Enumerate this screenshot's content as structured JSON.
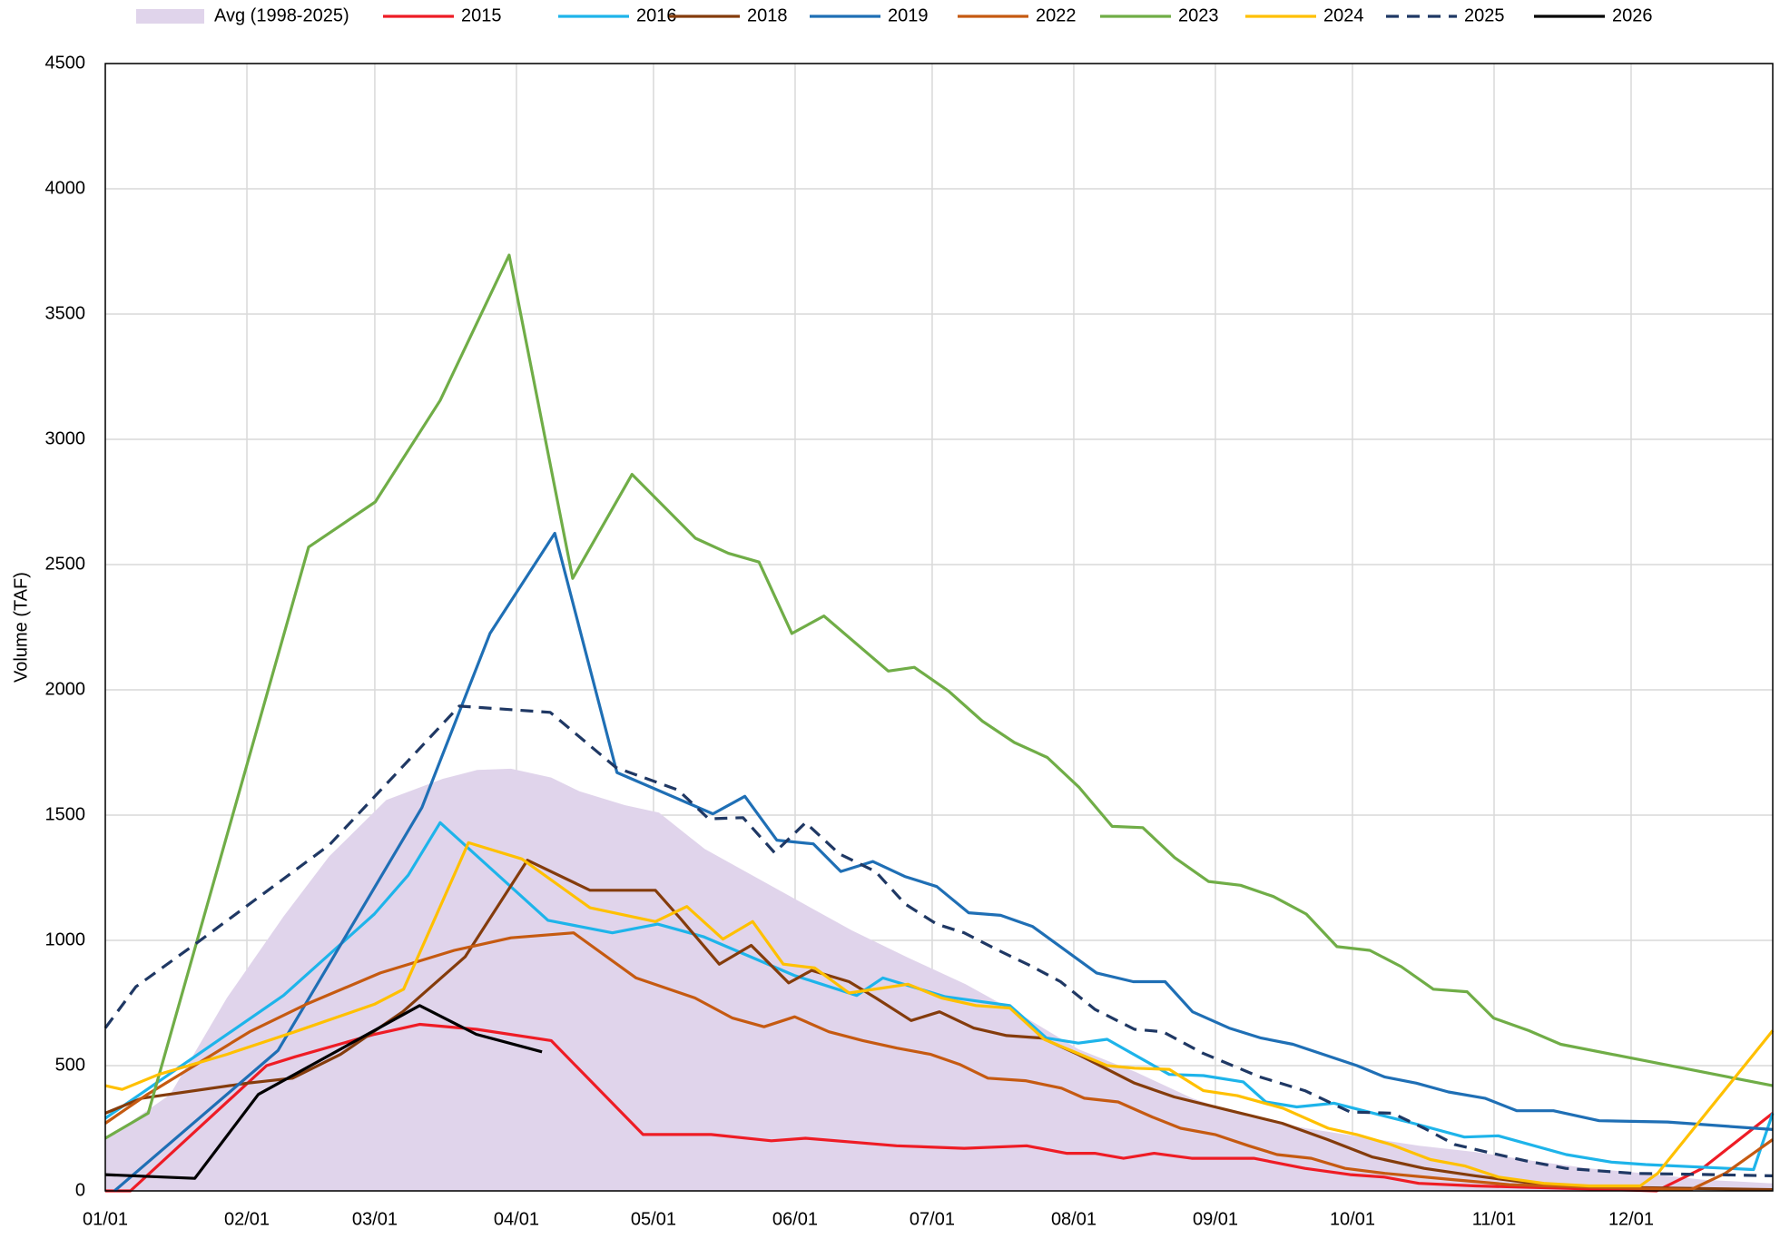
{
  "chart_data": {
    "type": "line",
    "y_label": "Volume (TAF)",
    "ylim": [
      0,
      4500
    ],
    "yticks": [
      0,
      500,
      1000,
      1500,
      2000,
      2500,
      3000,
      3500,
      4000,
      4500
    ],
    "xlim": [
      0,
      365
    ],
    "xticks": [
      {
        "value": 0,
        "label": "01/01"
      },
      {
        "value": 31,
        "label": "02/01"
      },
      {
        "value": 59,
        "label": "03/01"
      },
      {
        "value": 90,
        "label": "04/01"
      },
      {
        "value": 120,
        "label": "05/01"
      },
      {
        "value": 151,
        "label": "06/01"
      },
      {
        "value": 181,
        "label": "07/01"
      },
      {
        "value": 212,
        "label": "08/01"
      },
      {
        "value": 243,
        "label": "09/01"
      },
      {
        "value": 273,
        "label": "10/01"
      },
      {
        "value": 304,
        "label": "11/01"
      },
      {
        "value": 334,
        "label": "12/01"
      }
    ],
    "grid": true,
    "legend": "top",
    "series": [
      {
        "name": "Avg (1998-2025)",
        "type": "area",
        "color": "#e0d4eb",
        "x": [
          0,
          14.2,
          26.6,
          39,
          49,
          61.5,
          73.9,
          81.4,
          88.8,
          97.6,
          103.8,
          113.7,
          121.2,
          131.2,
          141.1,
          151,
          163.4,
          175.8,
          188.3,
          200.7,
          213.1,
          225.5,
          237.9,
          250.3,
          262.8,
          275.2,
          287.6,
          300,
          312.4,
          324.8,
          337.2,
          349.6,
          365
        ],
        "values": [
          205,
          385,
          770,
          1095,
          1335,
          1560,
          1645,
          1680,
          1685,
          1650,
          1595,
          1540,
          1510,
          1365,
          1265,
          1165,
          1040,
          930,
          825,
          700,
          565,
          475,
          370,
          295,
          250,
          215,
          180,
          155,
          120,
          90,
          70,
          45,
          30
        ]
      },
      {
        "name": "2015",
        "color": "#ee1c25",
        "x": [
          0,
          5.5,
          35.3,
          41.5,
          58.9,
          68.8,
          81.3,
          97.6,
          117.7,
          132.6,
          145.8,
          153.3,
          173.2,
          188,
          201.7,
          210.4,
          216.6,
          222.9,
          229.6,
          237.8,
          251.4,
          262.6,
          272.5,
          280,
          287.5,
          299.9,
          319.8,
          339.6,
          349.6,
          365
        ],
        "values": [
          0,
          0,
          500,
          535,
          625,
          665,
          645,
          600,
          225,
          225,
          200,
          210,
          180,
          170,
          180,
          150,
          150,
          130,
          150,
          130,
          130,
          90,
          65,
          55,
          30,
          20,
          10,
          0,
          90,
          310
        ]
      },
      {
        "name": "2016",
        "color": "#1eb4ea",
        "x": [
          0,
          39,
          58.9,
          66.3,
          73.3,
          96.9,
          111,
          120.9,
          130.9,
          150.8,
          164.5,
          170.2,
          183.9,
          198,
          206,
          213,
          219.3,
          232.9,
          240.4,
          249.1,
          254,
          260.8,
          269,
          277.6,
          286.3,
          297.5,
          304.9,
          319.8,
          329.7,
          337.2,
          360.8,
          365
        ],
        "values": [
          290,
          780,
          1105,
          1260,
          1470,
          1080,
          1030,
          1065,
          1015,
          860,
          780,
          850,
          775,
          740,
          610,
          590,
          605,
          465,
          460,
          435,
          355,
          335,
          350,
          310,
          270,
          215,
          220,
          145,
          115,
          105,
          85,
          310
        ]
      },
      {
        "name": "2018",
        "color": "#843c0c",
        "x": [
          0,
          8,
          31.1,
          41,
          51.5,
          65.1,
          78.8,
          92.4,
          106.1,
          120.4,
          126,
          134.4,
          141.4,
          149.6,
          154.6,
          162.8,
          168.7,
          176.4,
          182.6,
          190.1,
          197.3,
          205,
          212.9,
          225.3,
          234,
          245.2,
          257.6,
          267.5,
          277.4,
          288.7,
          299.9,
          314.8,
          329.7,
          365
        ],
        "values": [
          310,
          370,
          430,
          450,
          545,
          715,
          935,
          1320,
          1200,
          1200,
          1085,
          905,
          980,
          830,
          880,
          835,
          770,
          680,
          715,
          650,
          620,
          610,
          545,
          430,
          375,
          325,
          270,
          205,
          135,
          90,
          60,
          25,
          15,
          5
        ]
      },
      {
        "name": "2019",
        "color": "#1f6fb5",
        "x": [
          2,
          37.8,
          69.3,
          84.2,
          98.4,
          112,
          133,
          140,
          147,
          155,
          161,
          168,
          175,
          182,
          189,
          196,
          203,
          217,
          225,
          232,
          238,
          246,
          253,
          260,
          274,
          280,
          287,
          294,
          302,
          309,
          317,
          327,
          342,
          365
        ],
        "values": [
          0,
          560,
          1530,
          2225,
          2625,
          1670,
          1505,
          1575,
          1400,
          1385,
          1275,
          1315,
          1255,
          1215,
          1110,
          1100,
          1055,
          870,
          835,
          835,
          715,
          650,
          610,
          585,
          500,
          455,
          430,
          395,
          370,
          320,
          320,
          280,
          275,
          245
        ]
      },
      {
        "name": "2022",
        "color": "#c55a11",
        "x": [
          0,
          9.2,
          31.6,
          44,
          60.2,
          76.4,
          88.8,
          102.5,
          116.2,
          129.1,
          137.3,
          144.2,
          150.9,
          158.4,
          165.8,
          173.3,
          180.7,
          187,
          193.2,
          201.4,
          209.3,
          214.3,
          221.7,
          229.2,
          235.4,
          242.9,
          250.3,
          256.5,
          264,
          271.4,
          280.1,
          295,
          307.3,
          324.7,
          347.1,
          354.6,
          365
        ],
        "values": [
          270,
          385,
          635,
          745,
          870,
          960,
          1010,
          1030,
          850,
          770,
          690,
          655,
          695,
          635,
          600,
          570,
          545,
          505,
          450,
          440,
          410,
          370,
          355,
          295,
          250,
          225,
          180,
          145,
          130,
          90,
          70,
          45,
          25,
          15,
          5,
          70,
          205
        ]
      },
      {
        "name": "2023",
        "color": "#70ad47",
        "x": [
          0,
          9.4,
          44.5,
          59.1,
          73.3,
          88.4,
          102.3,
          115.3,
          129.2,
          136.4,
          143.1,
          150.3,
          157.3,
          171.4,
          177.1,
          184.6,
          192,
          199,
          206.2,
          213.2,
          220.4,
          227.1,
          234.1,
          241.5,
          248.5,
          255.7,
          262.9,
          269.6,
          276.8,
          283.7,
          290.7,
          298.1,
          303.9,
          311.6,
          318.6,
          365
        ],
        "values": [
          210,
          310,
          2570,
          2750,
          3155,
          3735,
          2445,
          2860,
          2605,
          2545,
          2510,
          2225,
          2295,
          2075,
          2090,
          1995,
          1875,
          1790,
          1730,
          1610,
          1455,
          1450,
          1330,
          1235,
          1220,
          1175,
          1105,
          975,
          960,
          895,
          805,
          795,
          690,
          640,
          585,
          420
        ]
      },
      {
        "name": "2024",
        "color": "#ffc000",
        "x": [
          0,
          3.7,
          11.7,
          26.6,
          41.5,
          58.9,
          65.3,
          79.5,
          91.2,
          106.1,
          120.4,
          127.3,
          135.2,
          141.7,
          148.4,
          155.3,
          162.8,
          175.7,
          183.1,
          190.6,
          198,
          205.5,
          219.3,
          225.3,
          232.9,
          240.4,
          247.8,
          257.8,
          267.7,
          273.9,
          281.4,
          290.1,
          297.5,
          305,
          314.9,
          324.8,
          336,
          339.8,
          365
        ],
        "values": [
          420,
          405,
          465,
          545,
          635,
          745,
          805,
          1390,
          1325,
          1130,
          1075,
          1135,
          1005,
          1075,
          905,
          890,
          790,
          825,
          770,
          740,
          730,
          605,
          500,
          490,
          485,
          400,
          380,
          330,
          250,
          225,
          185,
          125,
          100,
          55,
          30,
          20,
          20,
          70,
          640
        ]
      },
      {
        "name": "2025",
        "color": "#1f3864",
        "dash": true,
        "x": [
          0,
          6.7,
          20.4,
          49,
          77.5,
          97.4,
          111.8,
          125.4,
          132.1,
          139.6,
          146.5,
          153.3,
          160.7,
          168.6,
          175.1,
          182,
          188,
          195.5,
          202.4,
          209.1,
          216.6,
          225.3,
          231.5,
          240.2,
          252.7,
          262.6,
          272.5,
          281.7,
          288.7,
          295.4,
          302.4,
          311,
          319.7,
          334.6,
          352,
          365
        ],
        "values": [
          650,
          815,
          995,
          1380,
          1935,
          1910,
          1690,
          1600,
          1485,
          1490,
          1350,
          1470,
          1345,
          1275,
          1145,
          1065,
          1030,
          960,
          900,
          835,
          725,
          645,
          635,
          550,
          455,
          400,
          315,
          310,
          250,
          185,
          155,
          120,
          90,
          70,
          65,
          60
        ]
      },
      {
        "name": "2026",
        "color": "#000000",
        "x": [
          0,
          19.6,
          33.5,
          68.8,
          81.2,
          95.6
        ],
        "values": [
          65,
          50,
          385,
          740,
          625,
          555
        ]
      }
    ]
  }
}
